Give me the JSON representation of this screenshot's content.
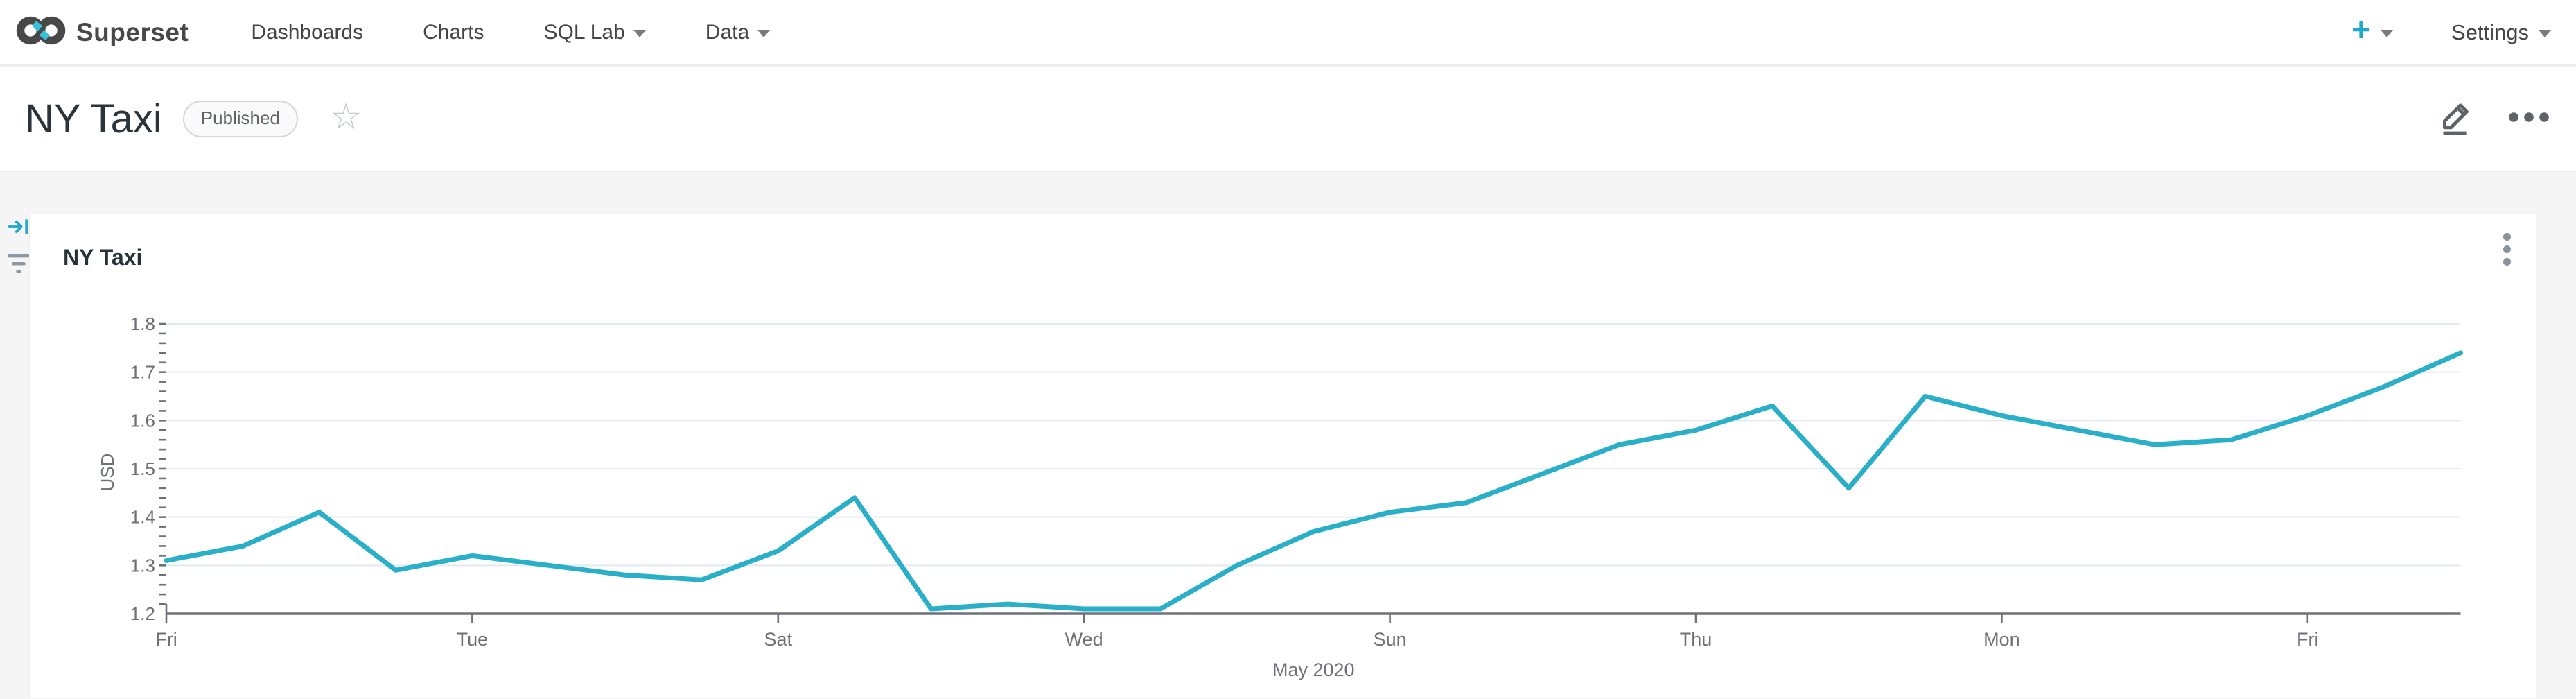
{
  "nav": {
    "brand": "Superset",
    "items": [
      {
        "label": "Dashboards",
        "caret": false
      },
      {
        "label": "Charts",
        "caret": false
      },
      {
        "label": "SQL Lab",
        "caret": true
      },
      {
        "label": "Data",
        "caret": true
      }
    ],
    "new_button": "+",
    "settings": "Settings"
  },
  "header": {
    "title": "NY Taxi",
    "status_badge": "Published"
  },
  "card": {
    "title": "NY Taxi"
  },
  "colors": {
    "brand_teal": "#1FA8C9",
    "line": "#2AAFC9",
    "axis": "#6E7079",
    "grid": "#E4E9F0",
    "muted_text": "#6E7079"
  },
  "chart_data": {
    "type": "line",
    "title": "NY Taxi",
    "ylabel": "USD",
    "x_axis_secondary_label": "May 2020",
    "ylim": [
      1.2,
      1.8
    ],
    "y_major_step": 0.1,
    "y_minor_step": 0.02,
    "grid": true,
    "legend": false,
    "x": [
      "2020-05-01",
      "2020-05-02",
      "2020-05-03",
      "2020-05-04",
      "2020-05-05",
      "2020-05-06",
      "2020-05-07",
      "2020-05-08",
      "2020-05-09",
      "2020-05-10",
      "2020-05-11",
      "2020-05-12",
      "2020-05-13",
      "2020-05-14",
      "2020-05-15",
      "2020-05-16",
      "2020-05-17",
      "2020-05-18",
      "2020-05-19",
      "2020-05-20",
      "2020-05-21",
      "2020-05-22",
      "2020-05-23",
      "2020-05-24",
      "2020-05-25",
      "2020-05-26",
      "2020-05-27",
      "2020-05-28",
      "2020-05-29",
      "2020-05-30",
      "2020-05-31"
    ],
    "values": [
      1.31,
      1.34,
      1.41,
      1.29,
      1.32,
      1.3,
      1.28,
      1.27,
      1.33,
      1.44,
      1.21,
      1.22,
      1.21,
      1.21,
      1.3,
      1.37,
      1.41,
      1.43,
      1.49,
      1.55,
      1.58,
      1.63,
      1.46,
      1.65,
      1.61,
      1.58,
      1.55,
      1.56,
      1.61,
      1.67,
      1.74
    ],
    "x_tick_indices": [
      0,
      4,
      8,
      12,
      16,
      20,
      24,
      28
    ],
    "x_tick_labels": [
      "Fri",
      "Tue",
      "Sat",
      "Wed",
      "Sun",
      "Thu",
      "Mon",
      "Fri"
    ]
  }
}
